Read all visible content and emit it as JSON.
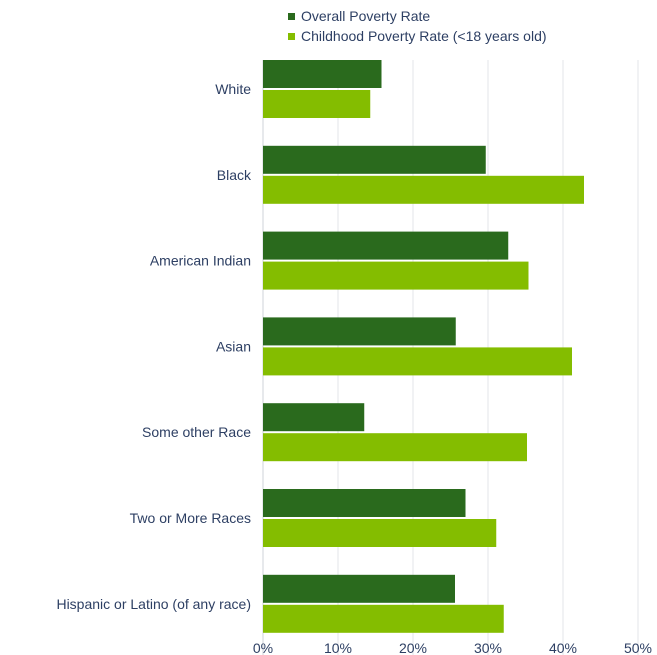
{
  "chart_data": {
    "type": "bar",
    "orientation": "horizontal",
    "categories": [
      "White",
      "Black",
      "American Indian",
      "Asian",
      "Some other Race",
      "Two or More Races",
      "Hispanic or Latino (of any race)"
    ],
    "series": [
      {
        "name": "Overall Poverty Rate",
        "color": "#2a6a1d",
        "values": [
          15.8,
          29.7,
          32.7,
          25.7,
          13.5,
          27.0,
          25.6
        ]
      },
      {
        "name": "Childhood Poverty Rate (<18 years old)",
        "color": "#84bd00",
        "values": [
          14.3,
          42.8,
          35.4,
          41.2,
          35.2,
          31.1,
          32.1
        ]
      }
    ],
    "x_ticks": [
      "0%",
      "10%",
      "20%",
      "30%",
      "40%",
      "50%"
    ],
    "xlim": [
      0,
      50
    ],
    "grid": "vertical",
    "legend_position": "top"
  }
}
